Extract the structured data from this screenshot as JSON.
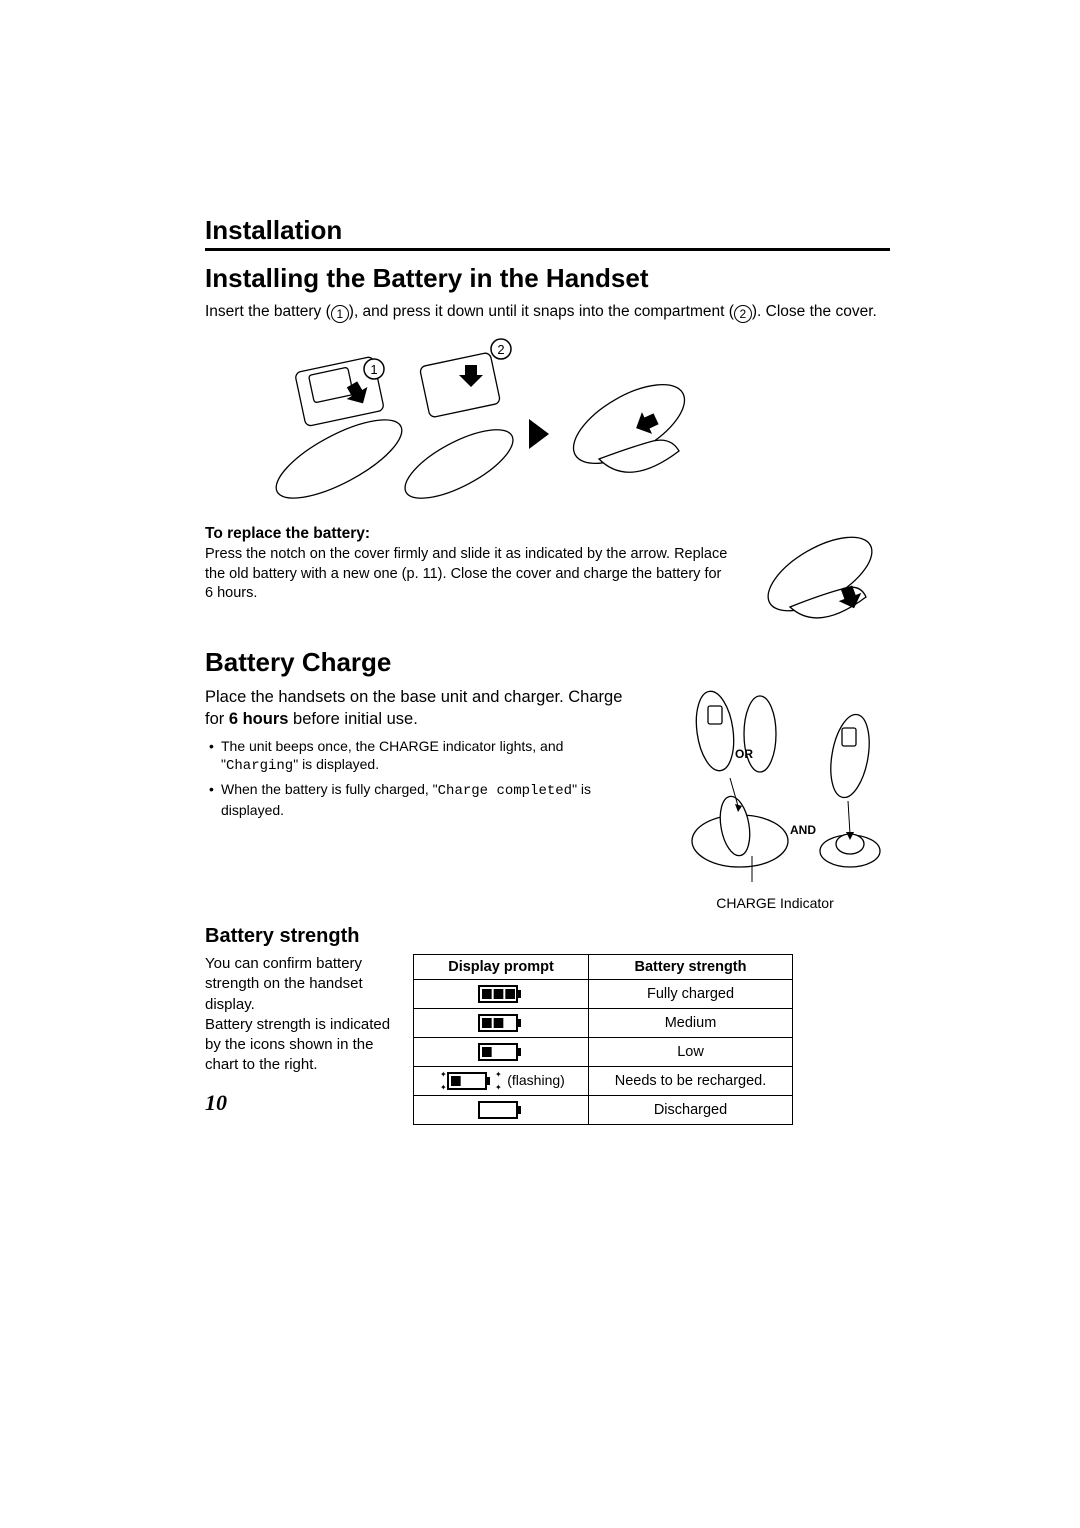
{
  "page_number": "10",
  "section_title": "Installation",
  "h2_install": "Installing the Battery in the Handset",
  "insert_text_1": "Insert the battery (",
  "insert_text_2": "), and press it down until it snaps into the compartment (",
  "insert_text_3": "). Close the cover.",
  "callout_1": "1",
  "callout_2": "2",
  "replace_heading": "To replace the battery:",
  "replace_text": "Press the notch on the cover firmly and slide it as indicated by the arrow. Replace the old battery with a new one (p. 11). Close the cover and charge the battery for 6 hours.",
  "h2_charge": "Battery Charge",
  "charge_text_1": "Place the handsets on the base unit and charger. Charge for ",
  "charge_bold": "6 hours",
  "charge_text_2": " before initial use.",
  "bullet1_a": "The unit beeps once, the CHARGE indicator lights, and \"",
  "bullet1_mono": "Charging",
  "bullet1_b": "\" is displayed.",
  "bullet2_a": "When the battery is fully charged, \"",
  "bullet2_mono": "Charge completed",
  "bullet2_b": "\" is displayed.",
  "or_label": "OR",
  "and_label": "AND",
  "charge_indicator": "CHARGE Indicator",
  "h3_strength": "Battery strength",
  "strength_text": "You can confirm battery strength on the handset display.\nBattery strength is indicated by the icons shown in the chart to the right.",
  "table": {
    "headers": [
      "Display prompt",
      "Battery strength"
    ],
    "rows": [
      {
        "bars": 3,
        "flashing": false,
        "label": "Fully charged"
      },
      {
        "bars": 2,
        "flashing": false,
        "label": "Medium"
      },
      {
        "bars": 1,
        "flashing": false,
        "label": "Low"
      },
      {
        "bars": 1,
        "flashing": true,
        "label": "Needs to be recharged."
      },
      {
        "bars": 0,
        "flashing": false,
        "label": "Discharged"
      }
    ],
    "flashing_text": "(flashing)"
  },
  "colors": {
    "text": "#000000",
    "bg": "#ffffff",
    "border": "#000000"
  }
}
